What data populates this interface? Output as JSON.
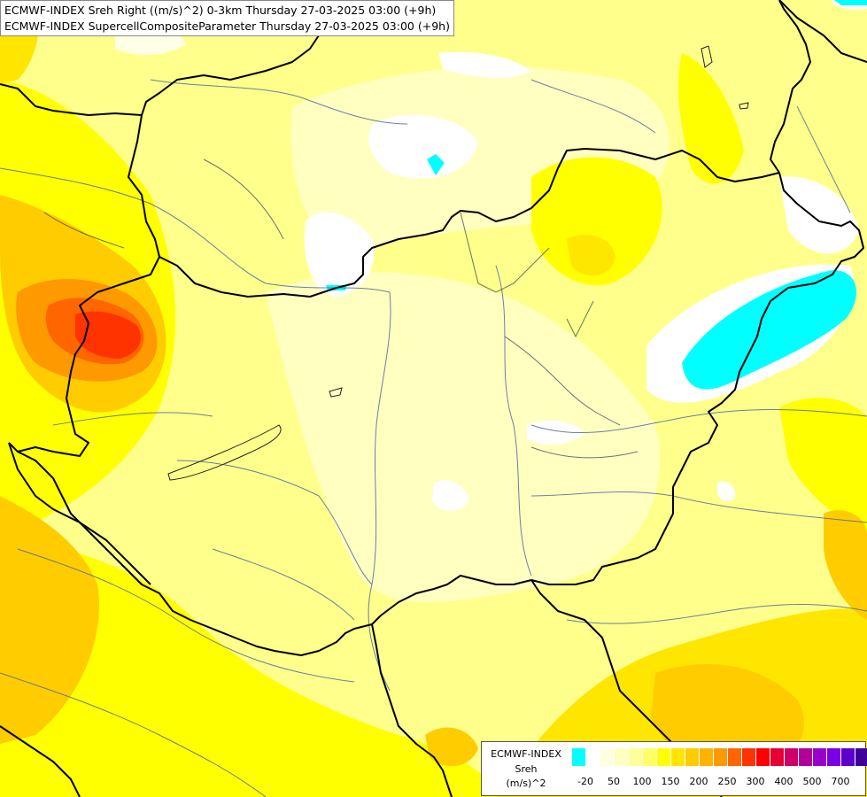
{
  "header": {
    "line1": "ECMWF-INDEX Sreh Right ((m/s)^2) 0-3km Thursday 27-03-2025 03:00 (+9h)",
    "line2": "ECMWF-INDEX SupercellCompositeParameter Thursday 27-03-2025 03:00 (+9h)"
  },
  "legend": {
    "model": "ECMWF-INDEX",
    "param": "Sreh",
    "unit": "(m/s)^2",
    "colors": [
      "#00ffff",
      "#ffffff",
      "#ffffe0",
      "#ffffc0",
      "#ffff99",
      "#ffff66",
      "#ffff00",
      "#ffe600",
      "#ffcc00",
      "#ffb300",
      "#ff9900",
      "#ff6600",
      "#ff3300",
      "#ff0000",
      "#e60033",
      "#cc0066",
      "#b30099",
      "#9900cc",
      "#7a00e6",
      "#5c00cc",
      "#3d0099",
      "#1f0066"
    ],
    "labels": [
      "-20",
      "50",
      "100",
      "150",
      "200",
      "250",
      "300",
      "400",
      "500",
      "700"
    ]
  }
}
